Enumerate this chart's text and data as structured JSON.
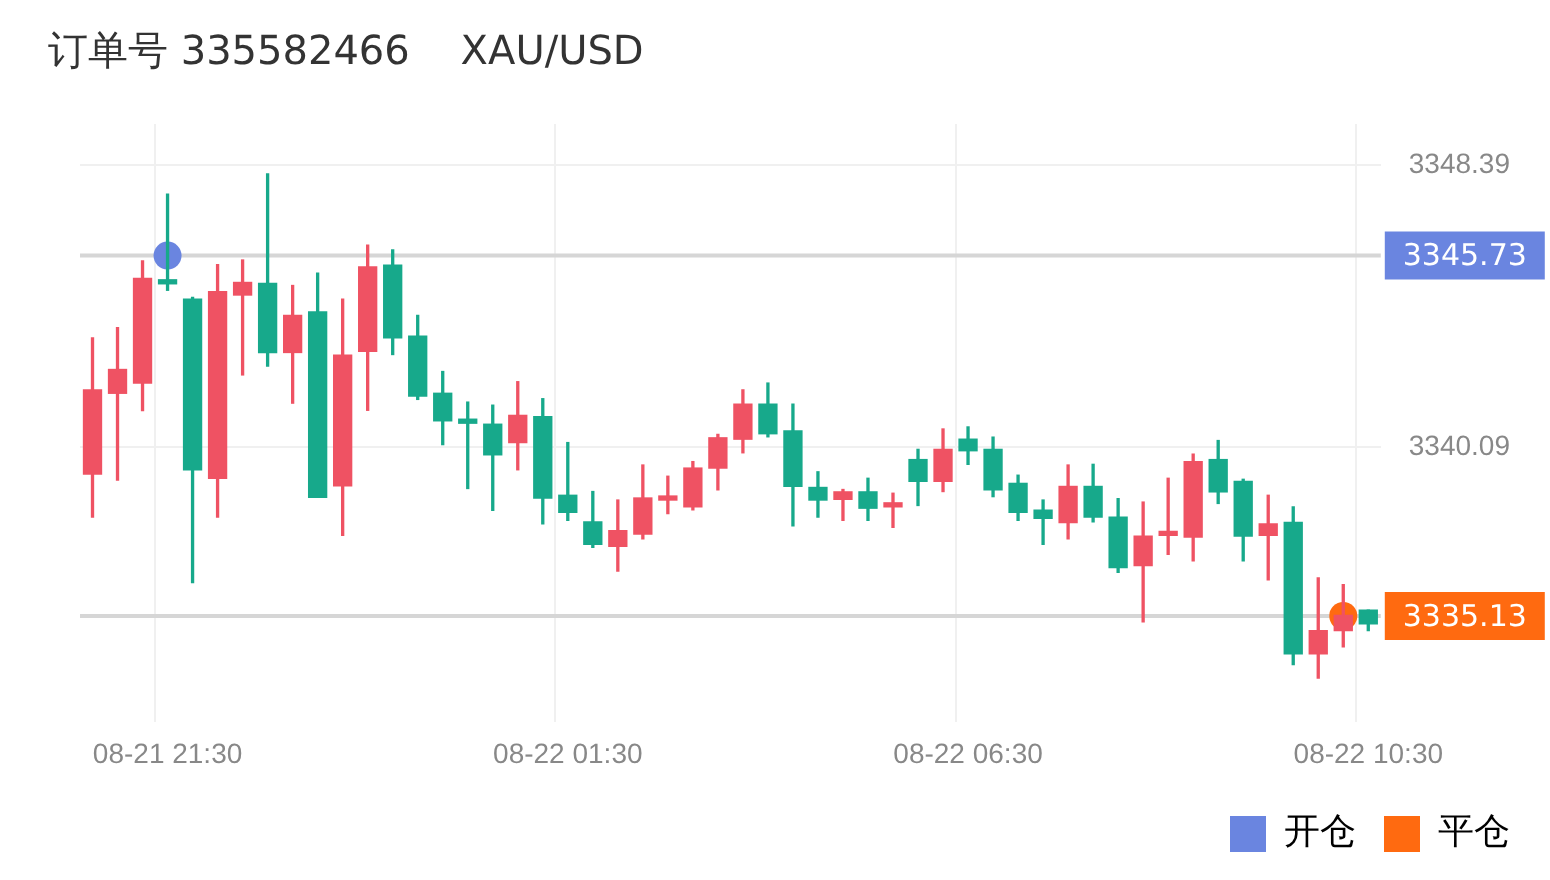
{
  "chart_data": {
    "type": "candlestick",
    "title": "订单号 335582466    XAU/USD",
    "categories": [
      null,
      null,
      null,
      "08-21 21:30",
      null,
      null,
      null,
      null,
      null,
      null,
      null,
      null,
      null,
      null,
      null,
      null,
      null,
      null,
      null,
      "08-22 01:30",
      null,
      null,
      null,
      null,
      null,
      null,
      null,
      null,
      null,
      null,
      null,
      null,
      null,
      null,
      null,
      "08-22 06:30",
      null,
      null,
      null,
      null,
      null,
      null,
      null,
      null,
      null,
      null,
      null,
      null,
      null,
      null,
      null,
      "08-22 10:30"
    ],
    "ohlc": [
      [
        3339.3,
        3343.31,
        3338.04,
        3341.78
      ],
      [
        3341.68,
        3343.61,
        3339.13,
        3342.38
      ],
      [
        3341.98,
        3345.57,
        3341.17,
        3345.06
      ],
      [
        3344.98,
        3347.54,
        3344.71,
        3344.9
      ],
      [
        3344.45,
        3344.5,
        3336.11,
        3339.43
      ],
      [
        3339.18,
        3345.46,
        3338.04,
        3344.67
      ],
      [
        3344.57,
        3345.6,
        3342.22,
        3344.94
      ],
      [
        3344.91,
        3348.13,
        3342.48,
        3342.88
      ],
      [
        3342.88,
        3344.85,
        3341.39,
        3343.97
      ],
      [
        3344.07,
        3345.21,
        3338.62,
        3338.62
      ],
      [
        3338.96,
        3344.45,
        3337.5,
        3342.8
      ],
      [
        3342.91,
        3346.04,
        3341.18,
        3345.4
      ],
      [
        3345.45,
        3345.9,
        3342.82,
        3343.31
      ],
      [
        3343.36,
        3343.97,
        3341.5,
        3341.6
      ],
      [
        3341.68,
        3342.32,
        3340.17,
        3340.87
      ],
      [
        3340.86,
        3341.42,
        3338.88,
        3340.8
      ],
      [
        3340.77,
        3341.33,
        3338.24,
        3339.87
      ],
      [
        3340.23,
        3342.02,
        3339.43,
        3341.03
      ],
      [
        3340.99,
        3341.52,
        3337.84,
        3338.6
      ],
      [
        3338.68,
        3340.23,
        3337.94,
        3338.18
      ],
      [
        3337.9,
        3338.79,
        3337.15,
        3337.24
      ],
      [
        3337.18,
        3338.54,
        3336.45,
        3337.64
      ],
      [
        3337.54,
        3339.57,
        3337.4,
        3338.6
      ],
      [
        3338.54,
        3339.24,
        3338.14,
        3338.62
      ],
      [
        3338.34,
        3339.67,
        3338.25,
        3339.48
      ],
      [
        3339.48,
        3340.47,
        3338.84,
        3340.37
      ],
      [
        3340.33,
        3341.78,
        3339.93,
        3341.36
      ],
      [
        3341.36,
        3341.98,
        3340.4,
        3340.49
      ],
      [
        3340.57,
        3341.36,
        3337.78,
        3338.94
      ],
      [
        3338.91,
        3339.37,
        3338.04,
        3338.54
      ],
      [
        3338.56,
        3338.85,
        3337.94,
        3338.78
      ],
      [
        3338.78,
        3339.18,
        3337.94,
        3338.3
      ],
      [
        3338.34,
        3338.74,
        3337.74,
        3338.42
      ],
      [
        3339.73,
        3340.03,
        3338.38,
        3339.09
      ],
      [
        3339.09,
        3340.63,
        3338.79,
        3340.03
      ],
      [
        3340.33,
        3340.69,
        3339.59,
        3339.99
      ],
      [
        3340.03,
        3340.39,
        3338.64,
        3338.84
      ],
      [
        3339.03,
        3339.27,
        3337.94,
        3338.18
      ],
      [
        3338.24,
        3338.54,
        3337.24,
        3338.0
      ],
      [
        3337.88,
        3339.57,
        3337.4,
        3338.94
      ],
      [
        3338.94,
        3339.59,
        3337.9,
        3338.04
      ],
      [
        3338.04,
        3338.58,
        3336.41,
        3336.55
      ],
      [
        3336.61,
        3338.48,
        3334.96,
        3337.48
      ],
      [
        3337.5,
        3339.18,
        3336.94,
        3337.58
      ],
      [
        3337.45,
        3339.89,
        3336.75,
        3339.67
      ],
      [
        3339.73,
        3340.29,
        3338.44,
        3338.78
      ],
      [
        3339.09,
        3339.15,
        3336.75,
        3337.48
      ],
      [
        3337.5,
        3338.68,
        3336.19,
        3337.84
      ],
      [
        3337.88,
        3338.34,
        3333.7,
        3334.02
      ],
      [
        3334.02,
        3336.25,
        3333.3,
        3334.7
      ],
      [
        3334.7,
        3336.05,
        3334.22,
        3335.15
      ],
      [
        3335.3,
        3335.3,
        3334.7,
        3334.9
      ]
    ],
    "colors": [
      "#ef5263",
      "#ef5263",
      "#ef5263",
      "#17a98b",
      "#17a98b",
      "#ef5263",
      "#ef5263",
      "#17a98b",
      "#ef5263",
      "#17a98b",
      "#ef5263",
      "#ef5263",
      "#17a98b",
      "#17a98b",
      "#17a98b",
      "#17a98b",
      "#17a98b",
      "#ef5263",
      "#17a98b",
      "#17a98b",
      "#17a98b",
      "#ef5263",
      "#ef5263",
      "#ef5263",
      "#ef5263",
      "#ef5263",
      "#ef5263",
      "#17a98b",
      "#17a98b",
      "#17a98b",
      "#ef5263",
      "#17a98b",
      "#ef5263",
      "#17a98b",
      "#ef5263",
      "#17a98b",
      "#17a98b",
      "#17a98b",
      "#17a98b",
      "#ef5263",
      "#17a98b",
      "#17a98b",
      "#ef5263",
      "#ef5263",
      "#ef5263",
      "#17a98b",
      "#17a98b",
      "#ef5263",
      "#17a98b",
      "#ef5263",
      "#ef5263",
      "#17a98b"
    ],
    "series": [
      {
        "name": "开仓",
        "type": "scatter",
        "color": "#6a85e0",
        "values": [
          null,
          null,
          null,
          3345.73,
          null,
          null,
          null,
          null,
          null,
          null,
          null,
          null,
          null,
          null,
          null,
          null,
          null,
          null,
          null,
          null,
          null,
          null,
          null,
          null,
          null,
          null,
          null,
          null,
          null,
          null,
          null,
          null,
          null,
          null,
          null,
          null,
          null,
          null,
          null,
          null,
          null,
          null,
          null,
          null,
          null,
          null,
          null,
          null,
          null,
          null,
          null,
          null
        ]
      },
      {
        "name": "平仓",
        "type": "scatter",
        "color": "#ff6a10",
        "values": [
          null,
          null,
          null,
          null,
          null,
          null,
          null,
          null,
          null,
          null,
          null,
          null,
          null,
          null,
          null,
          null,
          null,
          null,
          null,
          null,
          null,
          null,
          null,
          null,
          null,
          null,
          null,
          null,
          null,
          null,
          null,
          null,
          null,
          null,
          null,
          null,
          null,
          null,
          null,
          null,
          null,
          null,
          null,
          null,
          null,
          null,
          null,
          null,
          null,
          null,
          3335.13,
          null
        ]
      }
    ],
    "ref_lines": [
      {
        "axis": "y",
        "value": 3345.73,
        "label": "3345.73"
      },
      {
        "axis": "y",
        "value": 3335.13,
        "label": "3335.13"
      }
    ],
    "ylim": [
      3332.0,
      3349.6
    ],
    "yticks": [
      3348.39,
      3340.09
    ],
    "grid": true,
    "marker": "circle",
    "legend": "bottom right"
  }
}
